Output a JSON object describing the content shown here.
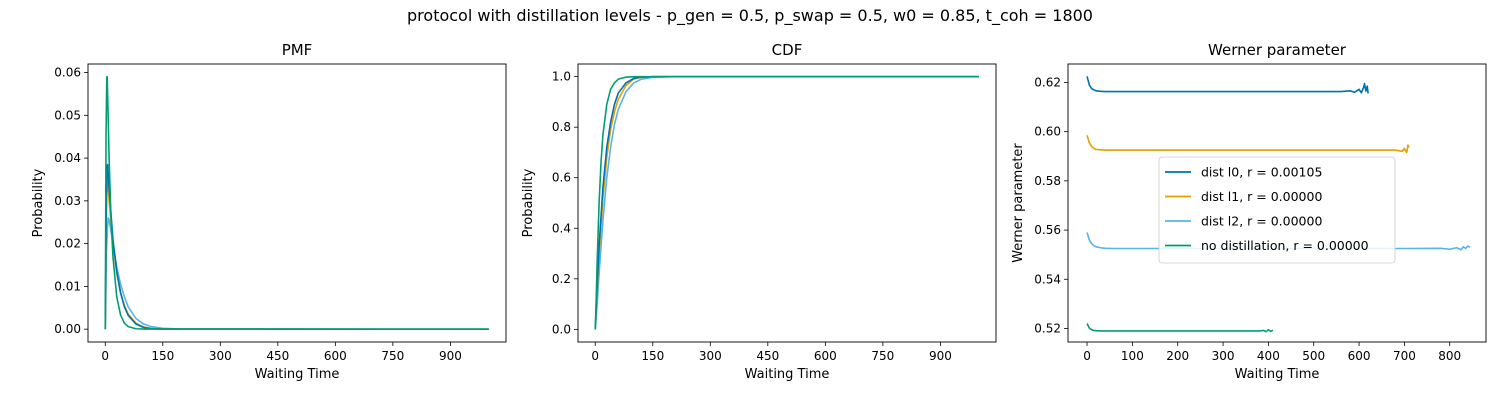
{
  "figure": {
    "suptitle": "protocol with distillation levels - p_gen = 0.5, p_swap = 0.5, w0 = 0.85, t_coh = 1800"
  },
  "colors": {
    "dist_l0": "#0072b2",
    "dist_l1": "#e69f00",
    "dist_l2": "#56b4e9",
    "no_distillation": "#009e73"
  },
  "chart_data": [
    {
      "type": "line",
      "title": "PMF",
      "xlabel": "Waiting Time",
      "ylabel": "Probability",
      "xlim": [
        -45,
        1045
      ],
      "ylim": [
        -0.003,
        0.062
      ],
      "xticks": [
        0,
        150,
        300,
        450,
        600,
        750,
        900
      ],
      "yticks": [
        0.0,
        0.01,
        0.02,
        0.03,
        0.04,
        0.05,
        0.06
      ],
      "ytick_labels": [
        "0.00",
        "0.01",
        "0.02",
        "0.03",
        "0.04",
        "0.05",
        "0.06"
      ],
      "series": [
        {
          "color_key": "dist_l2",
          "x": [
            0,
            3,
            6,
            8,
            10,
            15,
            20,
            30,
            40,
            50,
            60,
            80,
            100,
            120,
            150,
            200,
            300,
            1000
          ],
          "y": [
            0,
            0.018,
            0.024,
            0.026,
            0.0255,
            0.023,
            0.02,
            0.0145,
            0.0105,
            0.0075,
            0.0052,
            0.0025,
            0.0012,
            0.0006,
            0.0002,
            3e-05,
            0,
            0
          ]
        },
        {
          "color_key": "dist_l1",
          "x": [
            0,
            3,
            5,
            6,
            8,
            10,
            15,
            20,
            30,
            40,
            50,
            60,
            80,
            100,
            120,
            150,
            200,
            1000
          ],
          "y": [
            0,
            0.028,
            0.035,
            0.035,
            0.033,
            0.03,
            0.025,
            0.02,
            0.013,
            0.0085,
            0.0055,
            0.0035,
            0.0014,
            0.0005,
            0.0002,
            5e-05,
            0,
            0
          ]
        },
        {
          "color_key": "dist_l0",
          "x": [
            0,
            3,
            5,
            6,
            8,
            10,
            15,
            20,
            30,
            40,
            50,
            60,
            80,
            100,
            120,
            150,
            1000
          ],
          "y": [
            0,
            0.03,
            0.038,
            0.0385,
            0.036,
            0.033,
            0.027,
            0.021,
            0.0135,
            0.0085,
            0.0052,
            0.0032,
            0.0012,
            0.0004,
            0.0001,
            2e-05,
            0
          ]
        },
        {
          "color_key": "no_distillation",
          "x": [
            0,
            2,
            4,
            5,
            7,
            10,
            15,
            20,
            30,
            40,
            50,
            60,
            80,
            100,
            1000
          ],
          "y": [
            0,
            0.045,
            0.059,
            0.059,
            0.052,
            0.04,
            0.026,
            0.017,
            0.0075,
            0.0033,
            0.0014,
            0.0006,
            0.0001,
            2e-05,
            0
          ]
        }
      ]
    },
    {
      "type": "line",
      "title": "CDF",
      "xlabel": "Waiting Time",
      "ylabel": "Probability",
      "xlim": [
        -45,
        1045
      ],
      "ylim": [
        -0.05,
        1.05
      ],
      "xticks": [
        0,
        150,
        300,
        450,
        600,
        750,
        900
      ],
      "yticks": [
        0.0,
        0.2,
        0.4,
        0.6,
        0.8,
        1.0
      ],
      "ytick_labels": [
        "0.0",
        "0.2",
        "0.4",
        "0.6",
        "0.8",
        "1.0"
      ],
      "series": [
        {
          "color_key": "dist_l2",
          "x": [
            0,
            5,
            10,
            20,
            30,
            40,
            50,
            60,
            80,
            100,
            120,
            150,
            200,
            1000
          ],
          "y": [
            0,
            0.1,
            0.22,
            0.43,
            0.6,
            0.72,
            0.81,
            0.87,
            0.94,
            0.975,
            0.99,
            0.997,
            1.0,
            1.0
          ]
        },
        {
          "color_key": "dist_l1",
          "x": [
            0,
            5,
            10,
            20,
            30,
            40,
            50,
            60,
            80,
            100,
            120,
            150,
            1000
          ],
          "y": [
            0,
            0.15,
            0.3,
            0.52,
            0.68,
            0.79,
            0.86,
            0.91,
            0.965,
            0.99,
            0.997,
            1.0,
            1.0
          ]
        },
        {
          "color_key": "dist_l0",
          "x": [
            0,
            5,
            10,
            20,
            30,
            40,
            50,
            60,
            80,
            100,
            120,
            150,
            1000
          ],
          "y": [
            0,
            0.17,
            0.33,
            0.56,
            0.72,
            0.82,
            0.89,
            0.935,
            0.975,
            0.993,
            0.998,
            1.0,
            1.0
          ]
        },
        {
          "color_key": "no_distillation",
          "x": [
            0,
            3,
            5,
            10,
            15,
            20,
            30,
            40,
            50,
            60,
            80,
            100,
            1000
          ],
          "y": [
            0,
            0.15,
            0.27,
            0.5,
            0.66,
            0.77,
            0.89,
            0.95,
            0.975,
            0.99,
            0.998,
            1.0,
            1.0
          ]
        }
      ]
    },
    {
      "type": "line",
      "title": "Werner parameter",
      "xlabel": "Waiting Time",
      "ylabel": "Werner parameter",
      "xlim": [
        -42,
        880
      ],
      "ylim": [
        0.5145,
        0.6275
      ],
      "xticks": [
        0,
        100,
        200,
        300,
        400,
        500,
        600,
        700,
        800
      ],
      "yticks": [
        0.52,
        0.54,
        0.56,
        0.58,
        0.6,
        0.62
      ],
      "ytick_labels": [
        "0.52",
        "0.54",
        "0.56",
        "0.58",
        "0.60",
        "0.62"
      ],
      "legend_loc": "center-right",
      "series": [
        {
          "name": "dist l0, r = 0.00105",
          "color_key": "dist_l0",
          "x": [
            0,
            5,
            10,
            15,
            20,
            30,
            40,
            60,
            100,
            200,
            300,
            400,
            500,
            560,
            580,
            590,
            600,
            605,
            610,
            612,
            615,
            618,
            620
          ],
          "y": [
            0.6225,
            0.619,
            0.6175,
            0.617,
            0.6166,
            0.6164,
            0.6163,
            0.6163,
            0.6163,
            0.6163,
            0.6163,
            0.6163,
            0.6163,
            0.6163,
            0.6166,
            0.616,
            0.6172,
            0.6158,
            0.618,
            0.6195,
            0.6165,
            0.6185,
            0.6155
          ]
        },
        {
          "name": "dist l1, r = 0.00000",
          "color_key": "dist_l1",
          "x": [
            0,
            5,
            10,
            15,
            20,
            30,
            40,
            60,
            100,
            200,
            300,
            400,
            500,
            600,
            680,
            695,
            700,
            705,
            708,
            710
          ],
          "y": [
            0.5985,
            0.5955,
            0.594,
            0.5932,
            0.5928,
            0.5926,
            0.5925,
            0.5925,
            0.5925,
            0.5925,
            0.5925,
            0.5925,
            0.5925,
            0.5925,
            0.5925,
            0.592,
            0.5932,
            0.5915,
            0.5945,
            0.5935
          ]
        },
        {
          "name": "dist l2, r = 0.00000",
          "color_key": "dist_l2",
          "x": [
            0,
            5,
            10,
            15,
            20,
            30,
            40,
            60,
            100,
            200,
            300,
            400,
            500,
            600,
            700,
            780,
            800,
            815,
            825,
            830,
            835,
            840,
            845
          ],
          "y": [
            0.559,
            0.556,
            0.5545,
            0.5537,
            0.5532,
            0.5528,
            0.5526,
            0.5525,
            0.5525,
            0.5525,
            0.5525,
            0.5525,
            0.5525,
            0.5525,
            0.5525,
            0.5526,
            0.5522,
            0.5528,
            0.552,
            0.5532,
            0.5525,
            0.5535,
            0.553
          ]
        },
        {
          "name": "no distillation, r = 0.00000",
          "color_key": "no_distillation",
          "x": [
            0,
            5,
            10,
            15,
            20,
            30,
            40,
            60,
            100,
            200,
            300,
            350,
            380,
            390,
            395,
            400,
            405,
            410
          ],
          "y": [
            0.522,
            0.5202,
            0.5195,
            0.5192,
            0.5191,
            0.519,
            0.519,
            0.519,
            0.519,
            0.519,
            0.519,
            0.519,
            0.519,
            0.5192,
            0.5187,
            0.5195,
            0.5188,
            0.5193
          ]
        }
      ]
    }
  ]
}
